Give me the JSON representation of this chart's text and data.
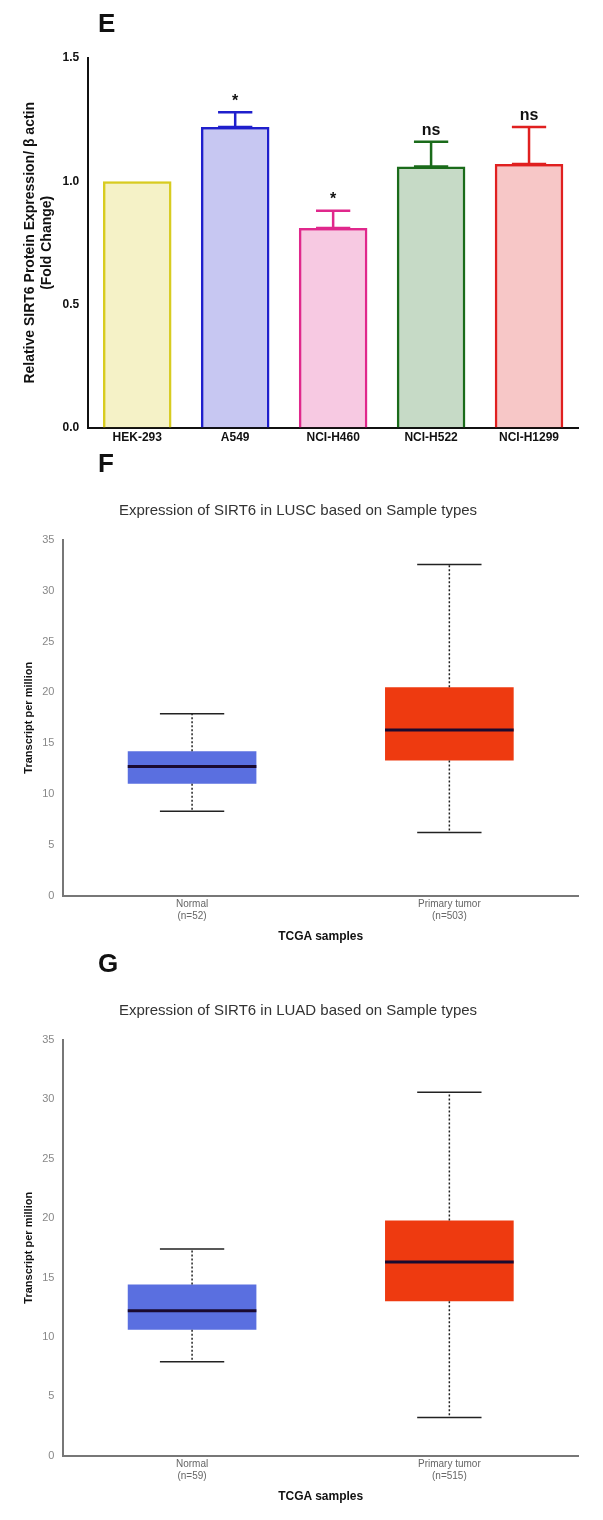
{
  "chart_data": [
    {
      "type": "bar",
      "ylabel": "Relative SIRT6 Protein Expression/ β actin\n(Fold Change)",
      "categories": [
        "HEK-293",
        "A549",
        "NCI-H460",
        "NCI-H522",
        "NCI-H1299"
      ],
      "values": [
        1.0,
        1.22,
        0.81,
        1.06,
        1.07
      ],
      "colors": [
        "#d8cc20",
        "#1f1fcc",
        "#e0288c",
        "#1a6b1a",
        "#e02020"
      ],
      "errors": [
        null,
        [
          1.22,
          1.28
        ],
        [
          0.81,
          0.88
        ],
        [
          1.06,
          1.16
        ],
        [
          1.07,
          1.22
        ]
      ],
      "ylim": [
        0,
        1.5
      ],
      "yticks": [
        {
          "value": 0,
          "label": "0.0"
        },
        {
          "value": 0.5,
          "label": "0.5"
        },
        {
          "value": 1,
          "label": "1.0"
        },
        {
          "value": 1.5,
          "label": "1.5"
        }
      ],
      "grid": false,
      "legend": false,
      "annotations": [
        "E",
        {
          "text": "*",
          "x": "A549",
          "y": 1.28
        },
        {
          "text": "*",
          "x": "NCI-H460",
          "y": 0.88
        },
        {
          "text": "ns",
          "x": "NCI-H522",
          "y": 1.16
        },
        {
          "text": "ns",
          "x": "NCI-H1299",
          "y": 1.22
        }
      ]
    },
    {
      "type": "box",
      "title": "Expression of SIRT6 in LUSC based on Sample types",
      "xlabel": "TCGA samples",
      "ylabel": "Transcript per million",
      "categories": [
        "Normal\n(n=52)",
        "Primary tumor\n(n=503)"
      ],
      "colors": [
        "#5a6fe0",
        "#ee3a10"
      ],
      "boxes": [
        {
          "low": 8.3,
          "q1": 11.0,
          "median": 12.7,
          "q3": 14.2,
          "high": 17.9
        },
        {
          "low": 6.2,
          "q1": 13.3,
          "median": 16.3,
          "q3": 20.5,
          "high": 32.6
        }
      ],
      "ylim": [
        0,
        35
      ],
      "yticks": [
        0,
        5,
        10,
        15,
        20,
        25,
        30,
        35
      ],
      "grid": false,
      "legend": false,
      "annotations": [
        "F"
      ]
    },
    {
      "type": "box",
      "title": "Expression of SIRT6 in LUAD based on Sample types",
      "xlabel": "TCGA samples",
      "ylabel": "Transcript per million",
      "categories": [
        "Normal\n(n=59)",
        "Primary tumor\n(n=515)"
      ],
      "colors": [
        "#5a6fe0",
        "#ee3a10"
      ],
      "boxes": [
        {
          "low": 7.9,
          "q1": 10.6,
          "median": 12.2,
          "q3": 14.4,
          "high": 17.4
        },
        {
          "low": 3.2,
          "q1": 13.0,
          "median": 16.3,
          "q3": 19.8,
          "high": 30.6
        }
      ],
      "ylim": [
        0,
        35
      ],
      "yticks": [
        0,
        5,
        10,
        15,
        20,
        25,
        30,
        35
      ],
      "grid": false,
      "legend": false,
      "annotations": [
        "G"
      ]
    }
  ]
}
